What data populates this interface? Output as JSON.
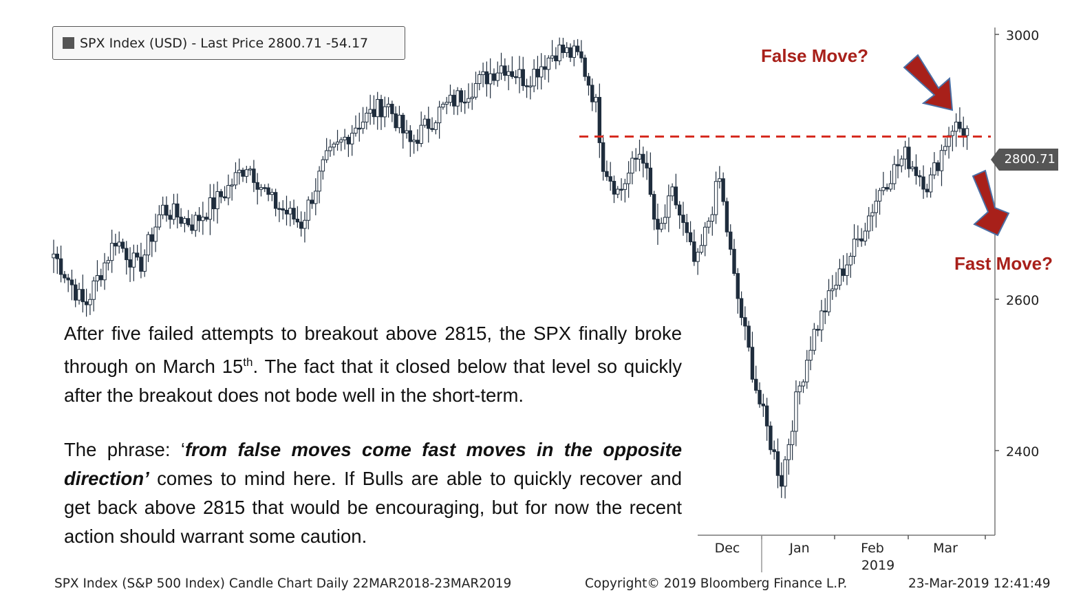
{
  "legend": {
    "label": "SPX Index (USD) - Last Price 2800.71  -54.17"
  },
  "last_price_tag": "2800.71",
  "annotations": {
    "false_move": "False Move?",
    "fast_move": "Fast Move?"
  },
  "text": {
    "para1_a": "After five failed attempts to breakout above 2815, the SPX finally broke through on March 15",
    "para1_sup": "th",
    "para1_b": ". The fact that it closed below that level so quickly after the breakout does not bode well in the short-term.",
    "para2_a": "The phrase: ‘",
    "para2_em": "from false moves come fast moves in the opposite direction’",
    "para2_b": " comes to mind here. If Bulls are able to  quickly recover and get back above 2815 that would be encouraging, but for now the recent action should warrant some caution."
  },
  "footer": {
    "left": "SPX Index (S&P 500 Index) Candle Chart  Daily 22MAR2018-23MAR2019",
    "center": "Copyright© 2019 Bloomberg Finance L.P.",
    "right": "23-Mar-2019 12:41:49"
  },
  "colors": {
    "candle": "#1f2d3d",
    "resistance": "#d62b20",
    "arrow_fill": "#a8201a",
    "arrow_stroke": "#4a6fa5"
  },
  "chart_data": {
    "type": "candlestick",
    "series_name": "SPX Index (USD) - Last Price",
    "last_price": 2800.71,
    "change": -54.17,
    "resistance_level": 2815,
    "ylim": [
      2300,
      3000
    ],
    "yticks": [
      2400,
      2600,
      3000
    ],
    "xticks": [
      {
        "label": "Dec",
        "sub": "",
        "month_index": 8.5
      },
      {
        "label": "Jan",
        "sub": "",
        "month_index": 9.5
      },
      {
        "label": "Feb",
        "sub": "2019",
        "month_index": 10.5
      },
      {
        "label": "Mar",
        "sub": "",
        "month_index": 11.5
      }
    ],
    "monthly_path": [
      [
        0,
        2660
      ],
      [
        0.4,
        2590
      ],
      [
        0.8,
        2680
      ],
      [
        1.1,
        2640
      ],
      [
        1.4,
        2720
      ],
      [
        1.8,
        2700
      ],
      [
        2.2,
        2740
      ],
      [
        2.5,
        2780
      ],
      [
        2.8,
        2730
      ],
      [
        3.2,
        2700
      ],
      [
        3.5,
        2780
      ],
      [
        3.9,
        2830
      ],
      [
        4.3,
        2860
      ],
      [
        4.6,
        2805
      ],
      [
        5.0,
        2850
      ],
      [
        5.4,
        2880
      ],
      [
        5.8,
        2910
      ],
      [
        6.1,
        2890
      ],
      [
        6.5,
        2930
      ],
      [
        6.8,
        2920
      ],
      [
        7.0,
        2860
      ],
      [
        7.1,
        2780
      ],
      [
        7.3,
        2740
      ],
      [
        7.6,
        2800
      ],
      [
        7.8,
        2680
      ],
      [
        8.0,
        2740
      ],
      [
        8.3,
        2640
      ],
      [
        8.6,
        2760
      ],
      [
        8.8,
        2620
      ],
      [
        9.1,
        2470
      ],
      [
        9.4,
        2360
      ],
      [
        9.6,
        2470
      ],
      [
        9.8,
        2550
      ],
      [
        10.1,
        2620
      ],
      [
        10.4,
        2680
      ],
      [
        10.7,
        2750
      ],
      [
        11.0,
        2790
      ],
      [
        11.3,
        2750
      ],
      [
        11.6,
        2830
      ],
      [
        11.8,
        2822
      ]
    ]
  }
}
